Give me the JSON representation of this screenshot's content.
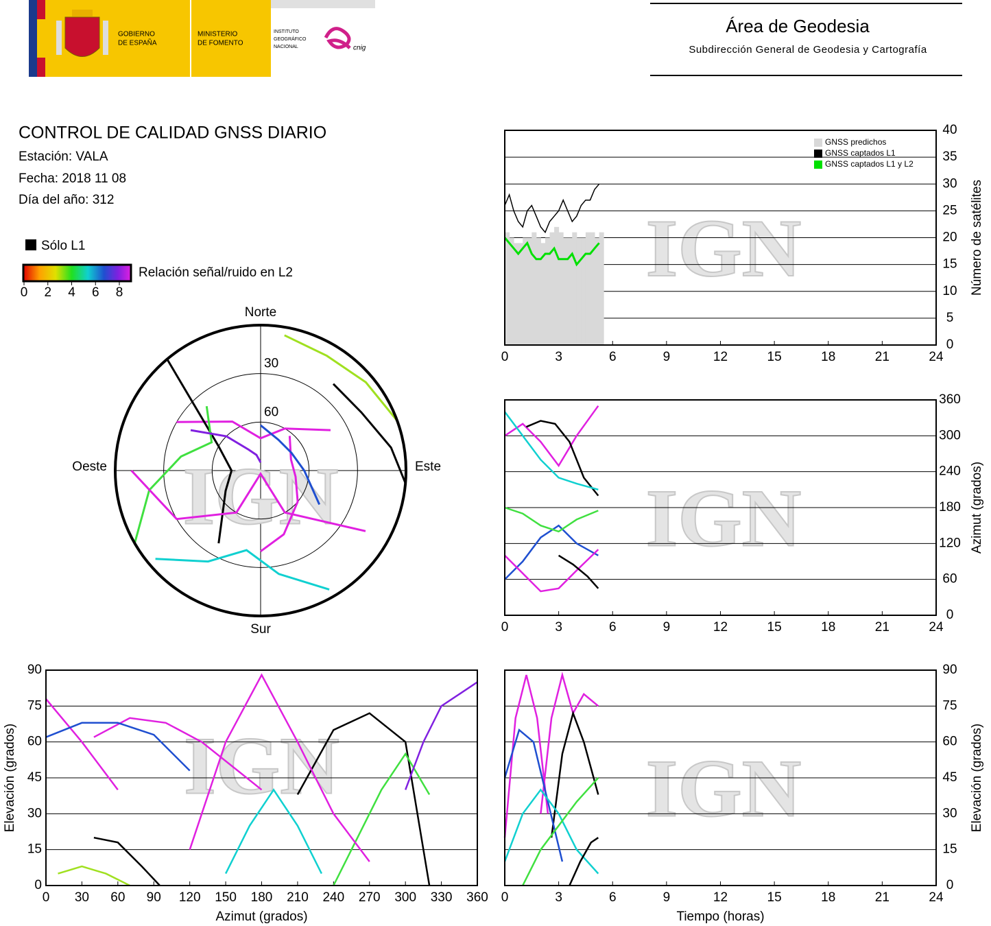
{
  "header": {
    "gov": [
      "GOBIERNO",
      "DE ESPAÑA"
    ],
    "ministry": [
      "MINISTERIO",
      "DE FOMENTO"
    ],
    "institute": [
      "INSTITUTO",
      "GEOGRÁFICO",
      "NACIONAL"
    ],
    "cnig": "cnig",
    "area": "Área de Geodesia",
    "subdirection": "Subdirección General de Geodesia y Cartografía"
  },
  "report": {
    "title": "CONTROL DE CALIDAD GNSS DIARIO",
    "station": "Estación: VALA",
    "date": "Fecha: 2018 11 08",
    "doy": "Día del año: 312"
  },
  "legend": {
    "l1_only": "Sólo L1",
    "snr_label": "Relación señal/ruido en L2",
    "snr_ticks": [
      0,
      2,
      4,
      6,
      8
    ]
  },
  "watermark": "IGN",
  "chart_data": [
    {
      "type": "polar",
      "directions": {
        "north": "Norte",
        "south": "Sur",
        "east": "Este",
        "west": "Oeste"
      },
      "rlim": [
        0,
        90
      ],
      "rings": [
        30,
        60
      ],
      "tracks": [
        {
          "color": "#e020e0",
          "azimuth": [
            40,
            70,
            100,
            130,
            160,
            180
          ],
          "elevation": [
            62,
            70,
            68,
            60,
            48,
            40
          ]
        },
        {
          "color": "#e020e0",
          "azimuth": [
            300,
            330,
            0,
            30,
            60
          ],
          "elevation": [
            30,
            55,
            70,
            60,
            40
          ]
        },
        {
          "color": "#1f4fd0",
          "azimuth": [
            0,
            30,
            60,
            90,
            120
          ],
          "elevation": [
            62,
            68,
            68,
            63,
            48
          ]
        },
        {
          "color": "#000000",
          "azimuth": [
            210,
            240,
            270,
            300,
            320
          ],
          "elevation": [
            38,
            65,
            72,
            60,
            0
          ]
        },
        {
          "color": "#10d0d0",
          "azimuth": [
            150,
            170,
            190,
            210,
            230
          ],
          "elevation": [
            5,
            25,
            40,
            25,
            5
          ]
        },
        {
          "color": "#40e040",
          "azimuth": [
            240,
            260,
            280,
            300,
            320
          ],
          "elevation": [
            0,
            20,
            40,
            55,
            38
          ]
        },
        {
          "color": "#000000",
          "azimuth": [
            40,
            60,
            80,
            95
          ],
          "elevation": [
            20,
            18,
            8,
            0
          ]
        },
        {
          "color": "#e020e0",
          "azimuth": [
            120,
            150,
            180,
            210,
            240,
            270
          ],
          "elevation": [
            15,
            60,
            88,
            60,
            30,
            10
          ]
        },
        {
          "color": "#a0e020",
          "azimuth": [
            10,
            30,
            50,
            70
          ],
          "elevation": [
            5,
            8,
            5,
            0
          ]
        },
        {
          "color": "#8020e0",
          "azimuth": [
            300,
            315,
            330,
            345,
            360
          ],
          "elevation": [
            40,
            60,
            75,
            80,
            85
          ]
        }
      ]
    },
    {
      "type": "combo",
      "y_label": "Número de satélites",
      "y_side": "right",
      "legend": "upper right",
      "grid": true,
      "xlim": [
        0,
        24
      ],
      "xticks": [
        0,
        3,
        6,
        9,
        12,
        15,
        18,
        21,
        24
      ],
      "ylim": [
        0,
        40
      ],
      "yticks": [
        0,
        5,
        10,
        15,
        20,
        25,
        30,
        35,
        40
      ],
      "x": [
        0,
        0.25,
        0.5,
        0.75,
        1,
        1.25,
        1.5,
        1.75,
        2,
        2.25,
        2.5,
        2.75,
        3,
        3.25,
        3.5,
        3.75,
        4,
        4.25,
        4.5,
        4.75,
        5,
        5.25
      ],
      "series": [
        {
          "name": "GNSS predichos",
          "color": "#d9d9d9",
          "kind": "bar",
          "values": [
            21,
            20,
            19,
            19,
            20,
            20,
            21,
            20,
            19,
            20,
            21,
            22,
            21,
            20,
            20,
            21,
            20,
            20,
            21,
            21,
            20,
            21
          ]
        },
        {
          "name": "GNSS captados L1",
          "color": "#000000",
          "values": [
            26,
            28,
            25,
            23,
            22,
            25,
            26,
            24,
            22,
            21,
            23,
            24,
            25,
            27,
            25,
            23,
            24,
            26,
            27,
            27,
            29,
            30
          ]
        },
        {
          "name": "GNSS captados L1 y L2",
          "color": "#00e000",
          "values": [
            20,
            19,
            18,
            17,
            18,
            19,
            17,
            16,
            16,
            17,
            17,
            18,
            16,
            16,
            16,
            17,
            15,
            16,
            17,
            17,
            18,
            19
          ]
        }
      ]
    },
    {
      "type": "line",
      "y_label": "Azimut (grados)",
      "y_side": "right",
      "grid": true,
      "xlim": [
        0,
        24
      ],
      "xticks": [
        0,
        3,
        6,
        9,
        12,
        15,
        18,
        21,
        24
      ],
      "ylim": [
        0,
        360
      ],
      "yticks": [
        0,
        60,
        120,
        180,
        240,
        300,
        360
      ],
      "tracks": [
        {
          "color": "#e020e0",
          "x": [
            0,
            1,
            2,
            3,
            4,
            5.2
          ],
          "values": [
            300,
            320,
            290,
            250,
            300,
            350
          ]
        },
        {
          "color": "#000000",
          "x": [
            1.2,
            2,
            2.8,
            3.6,
            4.4,
            5.2
          ],
          "values": [
            315,
            325,
            320,
            290,
            230,
            200
          ]
        },
        {
          "color": "#1f4fd0",
          "x": [
            0,
            1,
            2,
            3,
            4,
            5.2
          ],
          "values": [
            60,
            90,
            130,
            150,
            120,
            100
          ]
        },
        {
          "color": "#10d0d0",
          "x": [
            0,
            1,
            2,
            3,
            4,
            5.2
          ],
          "values": [
            340,
            300,
            260,
            230,
            220,
            210
          ]
        },
        {
          "color": "#e020e0",
          "x": [
            0,
            1,
            2,
            3,
            4,
            5.2
          ],
          "values": [
            100,
            70,
            40,
            45,
            75,
            110
          ]
        },
        {
          "color": "#40e040",
          "x": [
            0,
            1,
            2,
            3,
            4,
            5.2
          ],
          "values": [
            180,
            170,
            150,
            140,
            160,
            175
          ]
        },
        {
          "color": "#000000",
          "x": [
            3,
            3.8,
            4.6,
            5.2
          ],
          "values": [
            100,
            85,
            65,
            45
          ]
        }
      ]
    },
    {
      "type": "line",
      "x_label": "Azimut (grados)",
      "y_label": "Elevación (grados)",
      "y_side": "left",
      "grid": true,
      "xlim": [
        0,
        360
      ],
      "xticks": [
        0,
        30,
        60,
        90,
        120,
        150,
        180,
        210,
        240,
        270,
        300,
        330,
        360
      ],
      "ylim": [
        0,
        90
      ],
      "yticks": [
        0,
        15,
        30,
        45,
        60,
        75,
        90
      ],
      "tracks": [
        {
          "color": "#e020e0",
          "x": [
            40,
            70,
            100,
            130,
            160,
            180
          ],
          "values": [
            62,
            70,
            68,
            60,
            48,
            40
          ]
        },
        {
          "color": "#e020e0",
          "x": [
            0,
            30,
            60
          ],
          "values": [
            78,
            60,
            40
          ]
        },
        {
          "color": "#1f4fd0",
          "x": [
            0,
            30,
            60,
            90,
            120
          ],
          "values": [
            62,
            68,
            68,
            63,
            48
          ]
        },
        {
          "color": "#000000",
          "x": [
            210,
            240,
            270,
            300,
            320
          ],
          "values": [
            38,
            65,
            72,
            60,
            0
          ]
        },
        {
          "color": "#10d0d0",
          "x": [
            150,
            170,
            190,
            210,
            230
          ],
          "values": [
            5,
            25,
            40,
            25,
            5
          ]
        },
        {
          "color": "#40e040",
          "x": [
            240,
            260,
            280,
            300,
            320
          ],
          "values": [
            0,
            20,
            40,
            55,
            38
          ]
        },
        {
          "color": "#000000",
          "x": [
            40,
            60,
            80,
            95
          ],
          "values": [
            20,
            18,
            8,
            0
          ]
        },
        {
          "color": "#e020e0",
          "x": [
            120,
            150,
            180,
            210,
            240,
            270
          ],
          "values": [
            15,
            60,
            88,
            60,
            30,
            10
          ]
        },
        {
          "color": "#a0e020",
          "x": [
            10,
            30,
            50,
            70
          ],
          "values": [
            5,
            8,
            5,
            0
          ]
        },
        {
          "color": "#8020e0",
          "x": [
            300,
            315,
            330,
            345,
            360
          ],
          "values": [
            40,
            60,
            75,
            80,
            85
          ]
        }
      ]
    },
    {
      "type": "line",
      "x_label": "Tiempo (horas)",
      "y_label": "Elevación (grados)",
      "y_side": "right",
      "grid": true,
      "xlim": [
        0,
        24
      ],
      "xticks": [
        0,
        3,
        6,
        9,
        12,
        15,
        18,
        21,
        24
      ],
      "ylim": [
        0,
        90
      ],
      "yticks": [
        0,
        15,
        30,
        45,
        60,
        75,
        90
      ],
      "tracks": [
        {
          "color": "#e020e0",
          "x": [
            0,
            0.6,
            1.2,
            1.8,
            2.4
          ],
          "values": [
            20,
            70,
            88,
            70,
            30
          ]
        },
        {
          "color": "#e020e0",
          "x": [
            2,
            2.6,
            3.2,
            3.8,
            4.4,
            5.2
          ],
          "values": [
            30,
            70,
            88,
            72,
            80,
            75
          ]
        },
        {
          "color": "#000000",
          "x": [
            2.6,
            3.2,
            3.8,
            4.4,
            5.2
          ],
          "values": [
            20,
            55,
            72,
            60,
            38
          ]
        },
        {
          "color": "#1f4fd0",
          "x": [
            0,
            0.8,
            1.6,
            2.4,
            3.2
          ],
          "values": [
            45,
            65,
            60,
            35,
            10
          ]
        },
        {
          "color": "#10d0d0",
          "x": [
            0,
            1,
            2,
            3,
            4,
            5.2
          ],
          "values": [
            10,
            30,
            40,
            30,
            15,
            5
          ]
        },
        {
          "color": "#40e040",
          "x": [
            1,
            2,
            3,
            4,
            5.2
          ],
          "values": [
            0,
            15,
            25,
            35,
            45
          ]
        },
        {
          "color": "#000000",
          "x": [
            3.6,
            4.2,
            4.8,
            5.2
          ],
          "values": [
            0,
            10,
            18,
            20
          ]
        }
      ]
    }
  ]
}
